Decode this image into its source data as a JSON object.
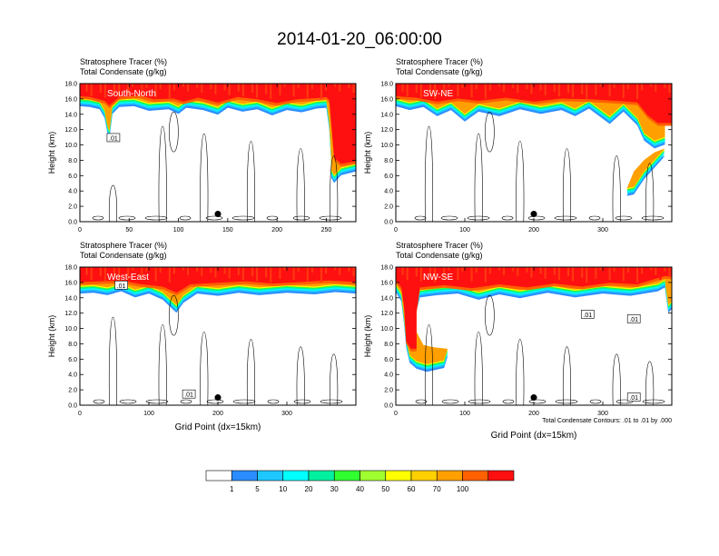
{
  "title": "2014-01-20_06:00:00",
  "chart_data": [
    {
      "type": "heatmap",
      "panel_label": "South-North",
      "subtitle_lines": [
        "Stratosphere Tracer   (%)",
        "Total Condensate   (g/kg)"
      ],
      "ylabel": "Height (km)",
      "xlabel": "",
      "xlim": [
        0,
        280
      ],
      "ylim": [
        0,
        18
      ],
      "x_ticks": [
        "0",
        "50",
        "100",
        "150",
        "200",
        "250"
      ],
      "y_ticks": [
        "0.0",
        "2.0",
        "4.0",
        "6.0",
        "8.0",
        "10.0",
        "12.0",
        "14.0",
        "16.0",
        "18.0"
      ],
      "marker": {
        "x": 140,
        "y": 1.0
      },
      "contour_labels": [
        {
          "text": ".01",
          "x": 34,
          "y": 10.9
        }
      ],
      "tropopause_km": [
        [
          0,
          15.5
        ],
        [
          10,
          15.4
        ],
        [
          20,
          15.1
        ],
        [
          25,
          14.0
        ],
        [
          28,
          12.0
        ],
        [
          30,
          11.3
        ],
        [
          33,
          14.5
        ],
        [
          40,
          15.4
        ],
        [
          55,
          15.5
        ],
        [
          70,
          14.9
        ],
        [
          90,
          15.1
        ],
        [
          100,
          14.5
        ],
        [
          108,
          15.3
        ],
        [
          125,
          15.0
        ],
        [
          140,
          14.4
        ],
        [
          150,
          15.3
        ],
        [
          165,
          14.8
        ],
        [
          180,
          15.1
        ],
        [
          195,
          14.3
        ],
        [
          210,
          15.0
        ],
        [
          225,
          14.7
        ],
        [
          240,
          15.2
        ],
        [
          250,
          15.3
        ],
        [
          253,
          12.5
        ],
        [
          255,
          8.0
        ],
        [
          255,
          6.2
        ],
        [
          258,
          5.5
        ],
        [
          265,
          6.5
        ],
        [
          280,
          7.0
        ]
      ],
      "red_top_km": [
        [
          0,
          16.0
        ],
        [
          10,
          15.9
        ],
        [
          25,
          15.4
        ],
        [
          30,
          14.8
        ],
        [
          40,
          15.9
        ],
        [
          60,
          16.1
        ],
        [
          75,
          15.6
        ],
        [
          95,
          15.7
        ],
        [
          105,
          15.3
        ],
        [
          120,
          15.8
        ],
        [
          140,
          15.2
        ],
        [
          160,
          15.9
        ],
        [
          180,
          15.6
        ],
        [
          200,
          15.1
        ],
        [
          220,
          15.6
        ],
        [
          245,
          15.8
        ],
        [
          250,
          15.9
        ],
        [
          253,
          15.5
        ],
        [
          258,
          8.0
        ],
        [
          265,
          7.2
        ],
        [
          280,
          7.5
        ]
      ]
    },
    {
      "type": "heatmap",
      "panel_label": "SW-NE",
      "subtitle_lines": [
        "Stratosphere Tracer   (%)",
        "Total Condensate   (g/kg)"
      ],
      "ylabel": "Height (km)",
      "xlabel": "",
      "xlim": [
        0,
        400
      ],
      "ylim": [
        0,
        18
      ],
      "x_ticks": [
        "0",
        "100",
        "200",
        "300"
      ],
      "y_ticks": [
        "0.0",
        "2.0",
        "4.0",
        "6.0",
        "8.0",
        "10.0",
        "12.0",
        "14.0",
        "16.0",
        "18.0"
      ],
      "marker": {
        "x": 200,
        "y": 1.0
      },
      "contour_labels": [],
      "tropopause_km": [
        [
          0,
          15.5
        ],
        [
          20,
          15.0
        ],
        [
          40,
          15.4
        ],
        [
          60,
          14.2
        ],
        [
          80,
          15.0
        ],
        [
          100,
          13.5
        ],
        [
          120,
          14.8
        ],
        [
          150,
          14.2
        ],
        [
          180,
          15.1
        ],
        [
          210,
          14.5
        ],
        [
          240,
          15.0
        ],
        [
          260,
          14.2
        ],
        [
          280,
          15.2
        ],
        [
          310,
          13.2
        ],
        [
          330,
          14.8
        ],
        [
          350,
          13.0
        ],
        [
          360,
          11.0
        ],
        [
          375,
          10.0
        ],
        [
          390,
          10.5
        ],
        [
          390,
          9.0
        ],
        [
          375,
          7.5
        ],
        [
          360,
          6.0
        ],
        [
          345,
          4.0
        ],
        [
          335,
          3.8
        ],
        [
          345,
          6.0
        ],
        [
          360,
          7.5
        ],
        [
          375,
          8.5
        ],
        [
          390,
          9.0
        ]
      ],
      "red_top_km": [
        [
          0,
          16.0
        ],
        [
          30,
          15.8
        ],
        [
          60,
          15.3
        ],
        [
          90,
          15.7
        ],
        [
          120,
          15.4
        ],
        [
          160,
          15.8
        ],
        [
          200,
          15.3
        ],
        [
          240,
          15.7
        ],
        [
          280,
          15.6
        ],
        [
          320,
          15.4
        ],
        [
          350,
          15.2
        ],
        [
          365,
          13.5
        ],
        [
          380,
          12.5
        ],
        [
          400,
          12.5
        ]
      ]
    },
    {
      "type": "heatmap",
      "panel_label": "West-East",
      "subtitle_lines": [
        "Stratosphere Tracer   (%)",
        "Total Condensate   (g/kg)"
      ],
      "ylabel": "Height (km)",
      "xlabel": "Grid Point (dx=15km)",
      "xlim": [
        0,
        400
      ],
      "ylim": [
        0,
        18
      ],
      "x_ticks": [
        "0",
        "100",
        "200",
        "300"
      ],
      "y_ticks": [
        "0.0",
        "2.0",
        "4.0",
        "6.0",
        "8.0",
        "10.0",
        "12.0",
        "14.0",
        "16.0",
        "18.0"
      ],
      "marker": {
        "x": 200,
        "y": 1.0
      },
      "contour_labels": [
        {
          "text": ".01",
          "x": 60,
          "y": 15.6
        },
        {
          "text": ".01",
          "x": 158,
          "y": 1.4
        }
      ],
      "tropopause_km": [
        [
          0,
          15.0
        ],
        [
          20,
          15.1
        ],
        [
          40,
          14.8
        ],
        [
          60,
          15.3
        ],
        [
          80,
          14.5
        ],
        [
          100,
          15.0
        ],
        [
          120,
          14.2
        ],
        [
          140,
          12.5
        ],
        [
          150,
          13.8
        ],
        [
          170,
          15.0
        ],
        [
          200,
          14.7
        ],
        [
          230,
          15.1
        ],
        [
          260,
          14.8
        ],
        [
          300,
          15.1
        ],
        [
          340,
          14.9
        ],
        [
          370,
          15.2
        ],
        [
          400,
          15.0
        ]
      ],
      "red_top_km": [
        [
          0,
          15.7
        ],
        [
          30,
          15.8
        ],
        [
          60,
          15.9
        ],
        [
          90,
          15.4
        ],
        [
          120,
          15.1
        ],
        [
          140,
          14.3
        ],
        [
          160,
          15.4
        ],
        [
          200,
          15.6
        ],
        [
          240,
          15.8
        ],
        [
          280,
          15.5
        ],
        [
          320,
          15.7
        ],
        [
          360,
          15.9
        ],
        [
          400,
          15.7
        ]
      ]
    },
    {
      "type": "heatmap",
      "panel_label": "NW-SE",
      "subtitle_lines": [
        "Stratosphere Tracer   (%)",
        "Total Condensate   (g/kg)"
      ],
      "ylabel": "Height (km)",
      "xlabel": "Grid Point (dx=15km)",
      "note": "Total Condensate Contours: .01 to .01 by .000",
      "xlim": [
        0,
        400
      ],
      "ylim": [
        0,
        18
      ],
      "x_ticks": [
        "0",
        "100",
        "200",
        "300"
      ],
      "y_ticks": [
        "0.0",
        "2.0",
        "4.0",
        "6.0",
        "8.0",
        "10.0",
        "12.0",
        "14.0",
        "16.0",
        "18.0"
      ],
      "marker": {
        "x": 200,
        "y": 1.0
      },
      "contour_labels": [
        {
          "text": ".01",
          "x": 278,
          "y": 11.8
        },
        {
          "text": ".01",
          "x": 345,
          "y": 11.2
        },
        {
          "text": ".01",
          "x": 345,
          "y": 1.0
        }
      ],
      "tropopause_km": [
        [
          0,
          15.2
        ],
        [
          8,
          14.0
        ],
        [
          12,
          11.0
        ],
        [
          15,
          8.0
        ],
        [
          20,
          6.0
        ],
        [
          30,
          5.2
        ],
        [
          45,
          4.8
        ],
        [
          70,
          5.3
        ],
        [
          75,
          6.8
        ],
        [
          55,
          7.0
        ],
        [
          40,
          7.3
        ],
        [
          30,
          9.0
        ],
        [
          28,
          12.0
        ],
        [
          35,
          14.5
        ],
        [
          60,
          14.8
        ],
        [
          90,
          15.0
        ],
        [
          120,
          14.2
        ],
        [
          150,
          14.9
        ],
        [
          180,
          14.4
        ],
        [
          220,
          15.1
        ],
        [
          260,
          14.5
        ],
        [
          300,
          15.0
        ],
        [
          340,
          14.7
        ],
        [
          380,
          15.3
        ],
        [
          390,
          15.8
        ],
        [
          395,
          12.5
        ],
        [
          400,
          13.0
        ]
      ],
      "red_top_km": [
        [
          0,
          15.9
        ],
        [
          8,
          15.0
        ],
        [
          12,
          12.5
        ],
        [
          15,
          8.0
        ],
        [
          22,
          7.0
        ],
        [
          30,
          7.0
        ],
        [
          30,
          12.0
        ],
        [
          35,
          15.0
        ],
        [
          70,
          15.3
        ],
        [
          110,
          14.9
        ],
        [
          150,
          15.4
        ],
        [
          190,
          15.0
        ],
        [
          230,
          15.5
        ],
        [
          270,
          15.1
        ],
        [
          310,
          15.6
        ],
        [
          350,
          15.4
        ],
        [
          390,
          16.5
        ],
        [
          400,
          16.4
        ]
      ]
    }
  ],
  "colorbar": {
    "labels": [
      "1",
      "5",
      "10",
      "20",
      "30",
      "40",
      "50",
      "60",
      "70",
      "100"
    ],
    "colors": [
      "#ffffff",
      "#2b8cff",
      "#1ec8ff",
      "#00ffff",
      "#00f0a0",
      "#30ff30",
      "#a0ff30",
      "#ffff00",
      "#ffd000",
      "#ffa000",
      "#ff6000",
      "#ff1010"
    ]
  }
}
